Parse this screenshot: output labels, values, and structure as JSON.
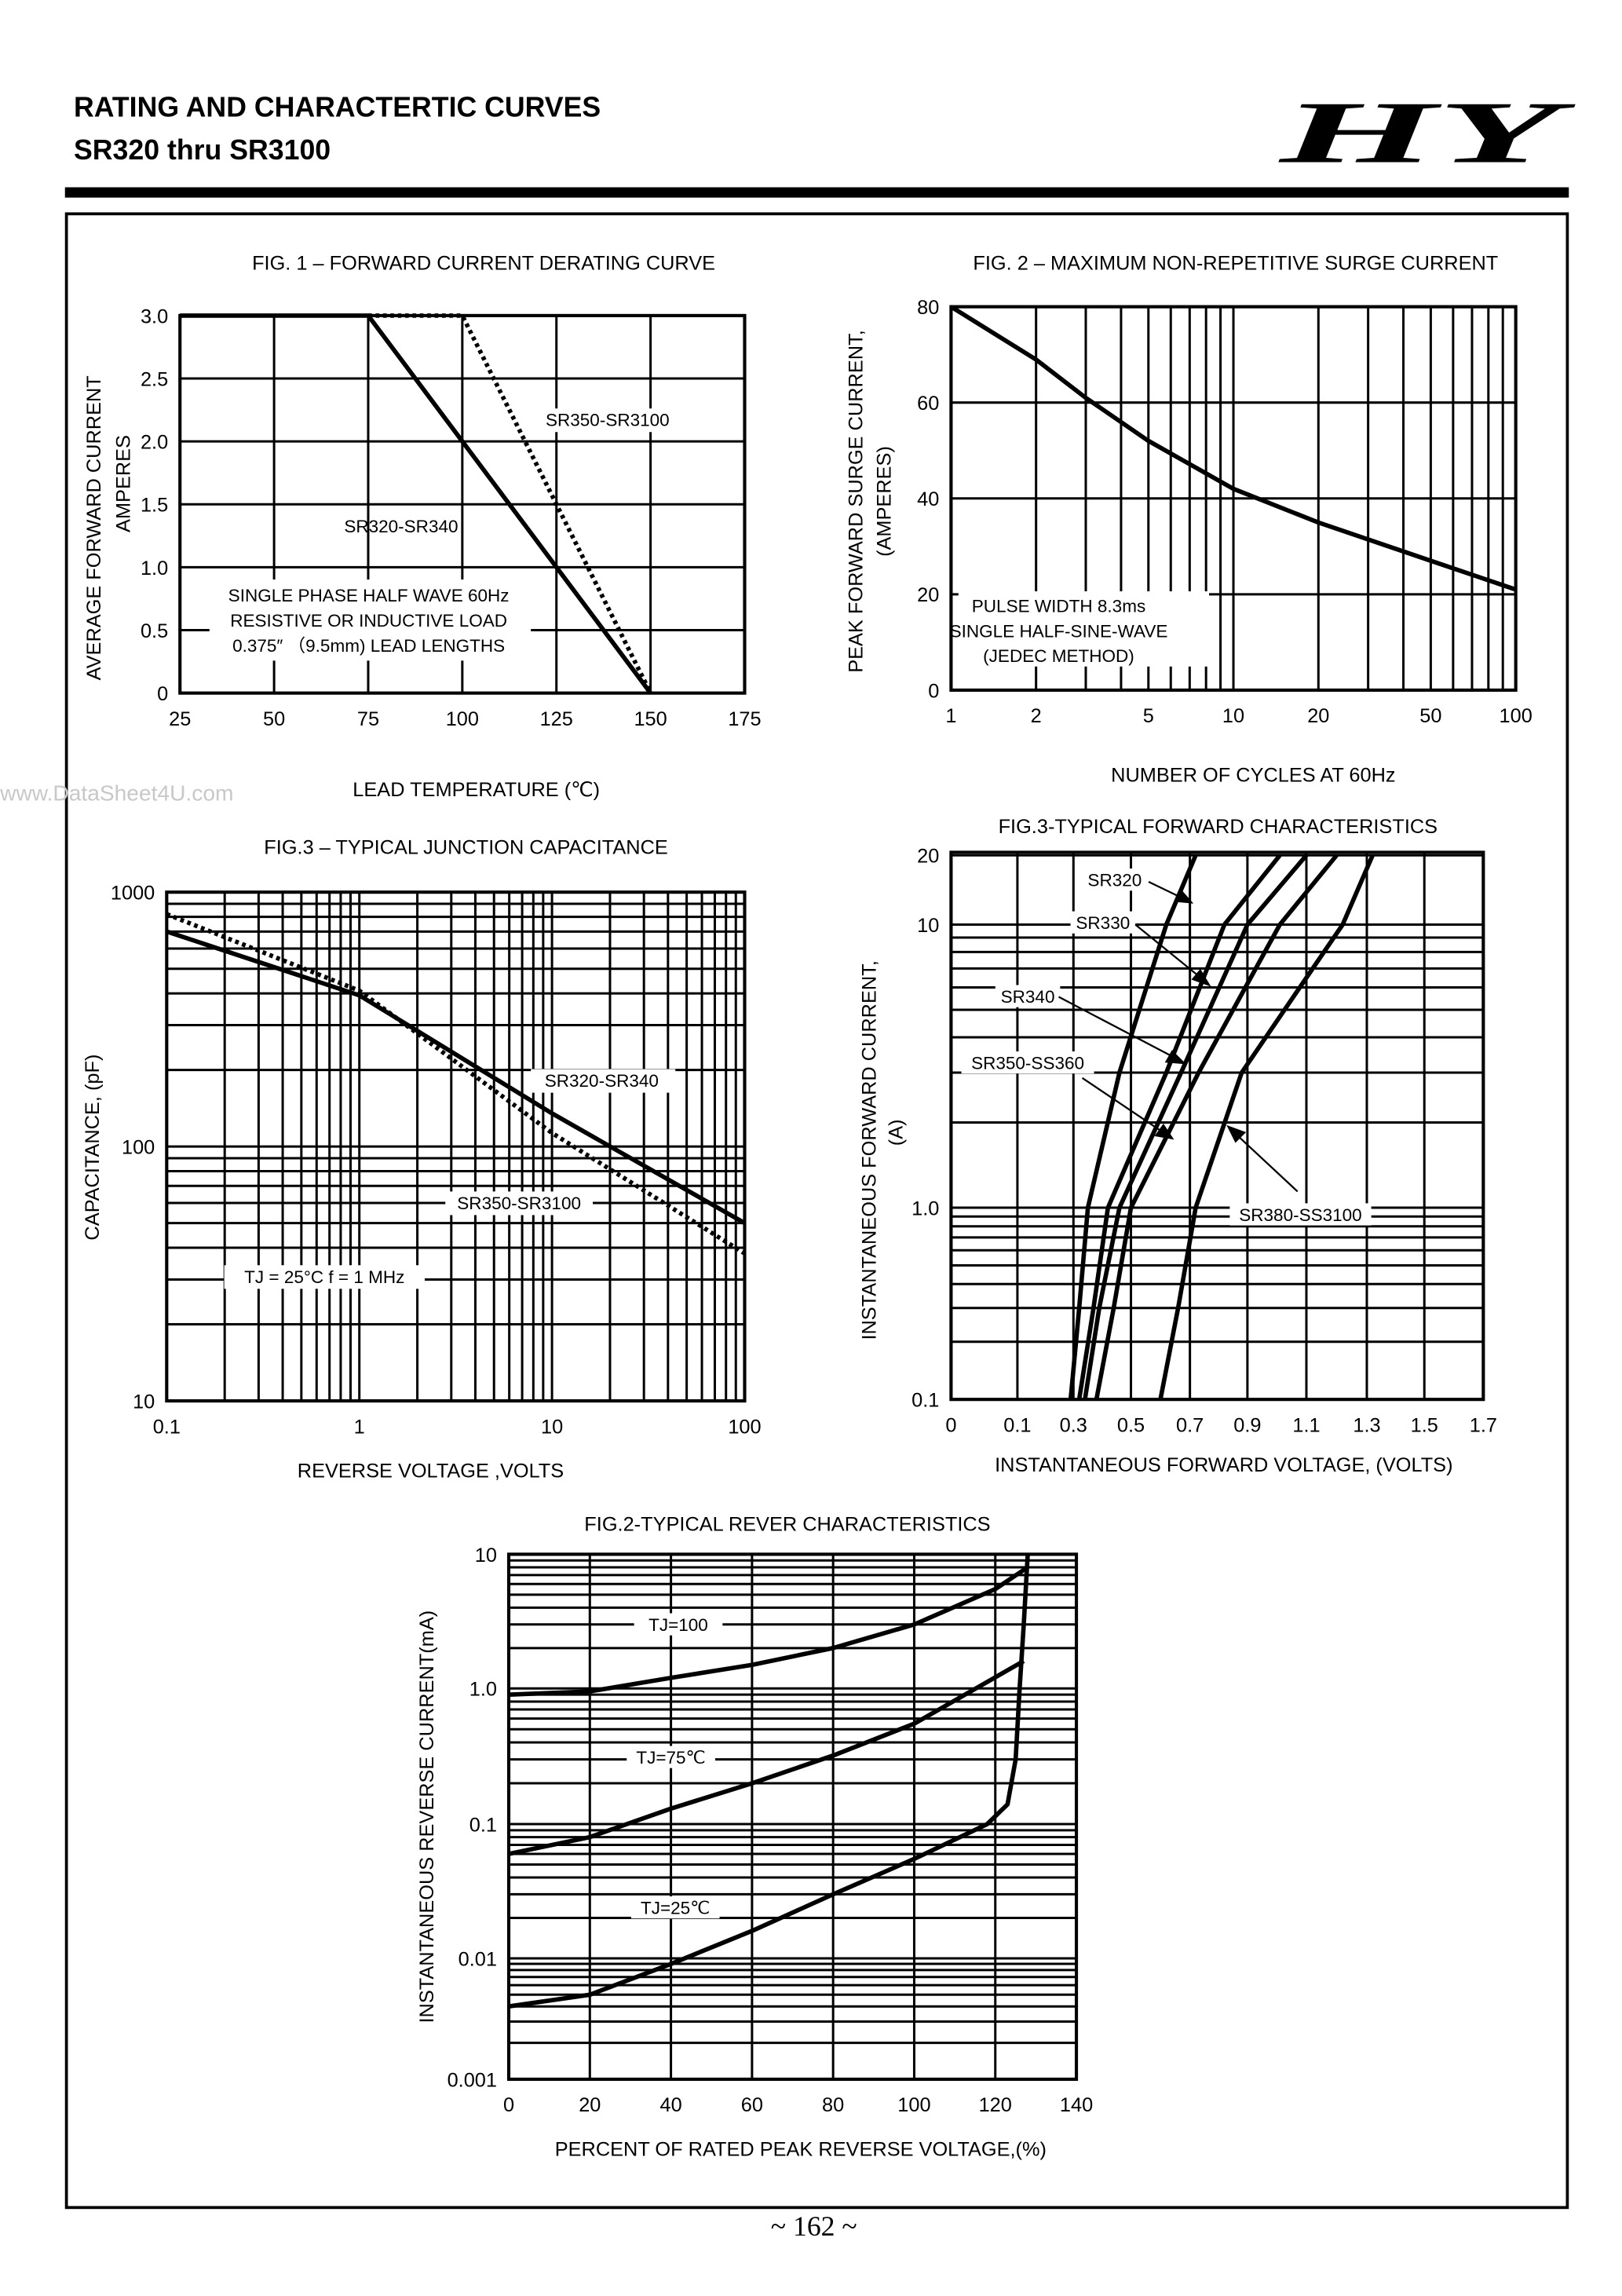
{
  "header": {
    "title": "RATING AND CHARACTERTIC CURVES",
    "subtitle": "SR320 thru SR3100",
    "logo": "HY"
  },
  "watermark": "www.DataSheet4U.com",
  "page_number": "~ 162 ~",
  "chart_data": [
    {
      "id": "fig1",
      "type": "line",
      "title": "FIG. 1 – FORWARD CURRENT DERATING CURVE",
      "xlabel": "LEAD  TEMPERATURE (℃)",
      "ylabel": [
        "AVERAGE FORWARD CURRENT",
        "AMPERES"
      ],
      "xlim": [
        25,
        175
      ],
      "ylim": [
        0,
        3.0
      ],
      "xticks": [
        "25",
        "50",
        "75",
        "100",
        "125",
        "150",
        "175"
      ],
      "yticks": [
        "0",
        "0.5",
        "1.0",
        "1.5",
        "2.0",
        "2.5",
        "3.0"
      ],
      "grid": true,
      "series": [
        {
          "name": "SR320-SR340",
          "style": "solid",
          "points": [
            [
              25,
              3.0
            ],
            [
              75,
              3.0
            ],
            [
              150,
              0
            ]
          ]
        },
        {
          "name": "SR350-SR3100",
          "style": "dotted",
          "points": [
            [
              75,
              3.0
            ],
            [
              100,
              3.0
            ],
            [
              150,
              0
            ]
          ]
        }
      ],
      "annotations": [
        "SINGLE PHASE HALF WAVE 60Hz",
        "RESISTIVE OR INDUCTIVE LOAD",
        "0.375″  （9.5mm) LEAD LENGTHS"
      ]
    },
    {
      "id": "fig2",
      "type": "line",
      "title": "FIG. 2 – MAXIMUM NON-REPETITIVE SURGE CURRENT",
      "xlabel": "NUMBER OF CYCLES AT 60Hz",
      "ylabel": [
        "PEAK FORWARD SURGE CURRENT,",
        "(AMPERES)"
      ],
      "xscale": "log",
      "xlim": [
        1,
        100
      ],
      "ylim": [
        0,
        80
      ],
      "xticks": [
        "1",
        "2",
        "5",
        "10",
        "20",
        "50",
        "100"
      ],
      "yticks": [
        "0",
        "20",
        "40",
        "60",
        "80"
      ],
      "grid": true,
      "series": [
        {
          "style": "solid",
          "points": [
            [
              1,
              80
            ],
            [
              2,
              69
            ],
            [
              3,
              61
            ],
            [
              5,
              52
            ],
            [
              10,
              42
            ],
            [
              20,
              35
            ],
            [
              50,
              27
            ],
            [
              100,
              21
            ]
          ]
        }
      ],
      "annotations": [
        "PULSE WIDTH 8.3ms",
        "SINGLE HALF-SINE-WAVE",
        "(JEDEC METHOD)"
      ]
    },
    {
      "id": "fig3",
      "type": "line",
      "title": "FIG.3 – TYPICAL JUNCTION CAPACITANCE",
      "xlabel": "REVERSE VOLTAGE ,VOLTS",
      "ylabel": [
        "CAPACITANCE, (pF)"
      ],
      "xscale": "log",
      "yscale": "log",
      "xlim": [
        0.1,
        100
      ],
      "ylim": [
        10,
        1000
      ],
      "xticks": [
        "0.1",
        "1",
        "10",
        "100"
      ],
      "yticks": [
        "10",
        "100",
        "1000"
      ],
      "grid": true,
      "series": [
        {
          "name": "SR320-SR340",
          "style": "solid",
          "points": [
            [
              0.1,
              700
            ],
            [
              1,
              393
            ],
            [
              10,
              135
            ],
            [
              100,
              50
            ]
          ]
        },
        {
          "name": "SR350-SR3100",
          "style": "dotted",
          "points": [
            [
              0.1,
              820
            ],
            [
              1,
              410
            ],
            [
              10,
              113
            ],
            [
              100,
              38
            ]
          ]
        }
      ],
      "annotations": [
        "TJ = 25°C  f = 1 MHz"
      ]
    },
    {
      "id": "fig4",
      "type": "line",
      "title": "FIG.3-TYPICAL FORWARD CHARACTERISTICS",
      "xlabel": "INSTANTANEOUS FORWARD VOLTAGE, (VOLTS)",
      "ylabel": [
        "INSTANTANEOUS FORWARD CURRENT,",
        "(A)"
      ],
      "yscale": "log",
      "xticks": [
        "0",
        "0.1",
        "0.3",
        "0.5",
        "0.7",
        "0.9",
        "1.1",
        "1.3",
        "1.5",
        "1.7"
      ],
      "yticks": [
        "0.1",
        "1.0",
        "10",
        "20"
      ],
      "grid": true,
      "series": [
        {
          "name": "SR320",
          "style": "solid",
          "points": [
            [
              0.29,
              0.1
            ],
            [
              0.32,
              0.3
            ],
            [
              0.35,
              1
            ],
            [
              0.46,
              3
            ],
            [
              0.62,
              10
            ],
            [
              0.72,
              20
            ]
          ]
        },
        {
          "name": "SR330",
          "style": "solid",
          "points": [
            [
              0.32,
              0.1
            ],
            [
              0.37,
              0.3
            ],
            [
              0.42,
              1
            ],
            [
              0.62,
              3
            ],
            [
              0.82,
              10
            ],
            [
              1.01,
              20
            ]
          ]
        },
        {
          "name": "SR340",
          "style": "solid",
          "points": [
            [
              0.34,
              0.1
            ],
            [
              0.39,
              0.3
            ],
            [
              0.46,
              1
            ],
            [
              0.67,
              3
            ],
            [
              0.9,
              10
            ],
            [
              1.1,
              20
            ]
          ]
        },
        {
          "name": "SR350-SS360",
          "style": "solid",
          "points": [
            [
              0.38,
              0.1
            ],
            [
              0.44,
              0.3
            ],
            [
              0.5,
              1
            ],
            [
              0.73,
              3
            ],
            [
              1.01,
              10
            ],
            [
              1.2,
              20
            ]
          ]
        },
        {
          "name": "SR380-SS3100",
          "style": "solid",
          "points": [
            [
              0.6,
              0.1
            ],
            [
              0.66,
              0.3
            ],
            [
              0.72,
              1
            ],
            [
              0.88,
              3
            ],
            [
              1.22,
              10
            ],
            [
              1.32,
              20
            ]
          ]
        }
      ]
    },
    {
      "id": "fig5",
      "type": "line",
      "title": "FIG.2-TYPICAL REVER CHARACTERISTICS",
      "xlabel": "PERCENT OF RATED PEAK REVERSE VOLTAGE,(%)",
      "ylabel": [
        "INSTANTANEOUS REVERSE CURRENT(mA)"
      ],
      "yscale": "log",
      "xlim": [
        0,
        140
      ],
      "ylim": [
        0.001,
        10
      ],
      "xticks": [
        "0",
        "20",
        "40",
        "60",
        "80",
        "100",
        "120",
        "140"
      ],
      "yticks": [
        "0.001",
        "0.01",
        "0.1",
        "1.0",
        "10"
      ],
      "grid": true,
      "series": [
        {
          "name": "TJ=100",
          "style": "solid",
          "points": [
            [
              0,
              0.9
            ],
            [
              20,
              0.95
            ],
            [
              40,
              1.2
            ],
            [
              60,
              1.5
            ],
            [
              80,
              2.0
            ],
            [
              100,
              3.0
            ],
            [
              120,
              5.5
            ],
            [
              128,
              8
            ]
          ]
        },
        {
          "name": "TJ=75℃",
          "style": "solid",
          "points": [
            [
              0,
              0.06
            ],
            [
              20,
              0.08
            ],
            [
              40,
              0.13
            ],
            [
              60,
              0.2
            ],
            [
              80,
              0.32
            ],
            [
              100,
              0.55
            ],
            [
              127,
              1.6
            ]
          ]
        },
        {
          "name": "TJ=25℃",
          "style": "solid",
          "points": [
            [
              0,
              0.004
            ],
            [
              20,
              0.005
            ],
            [
              40,
              0.009
            ],
            [
              60,
              0.016
            ],
            [
              80,
              0.03
            ],
            [
              100,
              0.055
            ],
            [
              118,
              0.1
            ],
            [
              123,
              0.14
            ],
            [
              125,
              0.3
            ],
            [
              126,
              1.0
            ],
            [
              127,
              3
            ],
            [
              128,
              10
            ]
          ]
        }
      ]
    }
  ]
}
